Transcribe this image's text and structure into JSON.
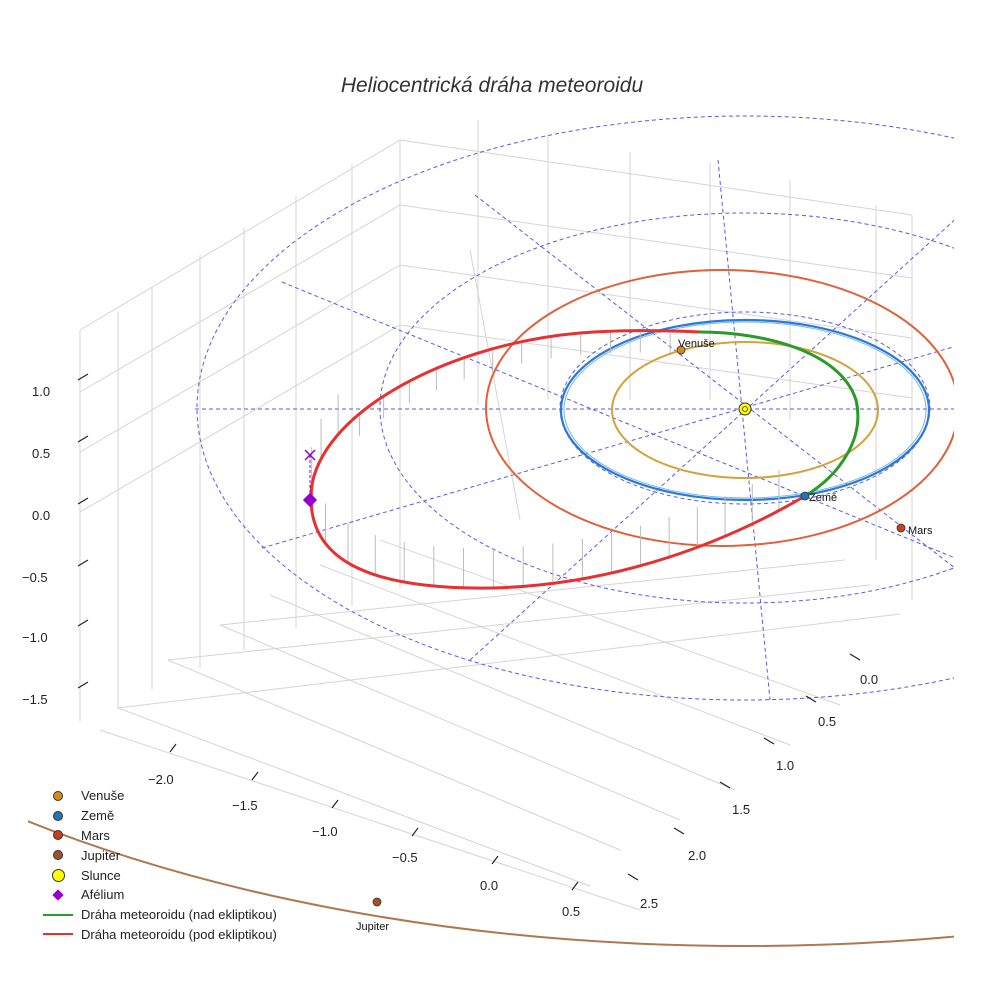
{
  "chart_data": {
    "type": "line",
    "title": "Heliocentrická dráha meteoroidu",
    "projection": "3d",
    "xlabel": "",
    "ylabel": "",
    "zlabel": "",
    "x_ticks": [
      "−2.0",
      "−1.5",
      "−1.0",
      "−0.5",
      "0.0",
      "0.5"
    ],
    "y_ticks": [
      "0.0",
      "0.5",
      "1.0",
      "1.5",
      "2.0",
      "2.5"
    ],
    "z_ticks": [
      "1.0",
      "0.5",
      "0.0",
      "−0.5",
      "−1.0",
      "−1.5"
    ],
    "planets": [
      {
        "name": "Venuše",
        "orbit_radius_au": 0.72,
        "color": "#d4a23a",
        "marker_color": "#d48a1a"
      },
      {
        "name": "Země",
        "orbit_radius_au": 1.0,
        "color": "#2e78d6",
        "marker_color": "#1f77b4"
      },
      {
        "name": "Mars",
        "orbit_radius_au": 1.52,
        "color": "#e0603a",
        "marker_color": "#c8401a"
      },
      {
        "name": "Jupiter",
        "orbit_radius_au": 5.2,
        "color": "#b07850",
        "marker_color": "#a0522d"
      }
    ],
    "sun": {
      "name": "Slunce",
      "color": "#ffff00"
    },
    "aphelion": {
      "name": "Afélium",
      "color": "#9400d3"
    },
    "series": [
      {
        "name": "Dráha meteoroidu (nad ekliptikou)",
        "color": "#2a9a2a"
      },
      {
        "name": "Dráha meteoroidu (pod ekliptikou)",
        "color": "#e83030"
      }
    ]
  },
  "legend": [
    {
      "label": "Venuše",
      "kind": "dot",
      "color": "#d48a1a"
    },
    {
      "label": "Země",
      "kind": "dot",
      "color": "#1f77b4"
    },
    {
      "label": "Mars",
      "kind": "dot",
      "color": "#c8401a"
    },
    {
      "label": "Jupiter",
      "kind": "dot",
      "color": "#a0522d"
    },
    {
      "label": "Slunce",
      "kind": "bigdot",
      "color": "#ffff00"
    },
    {
      "label": "Afélium",
      "kind": "diamond",
      "color": "#9400d3"
    },
    {
      "label": "Dráha meteoroidu (nad ekliptikou)",
      "kind": "line",
      "color": "#2a9a2a"
    },
    {
      "label": "Dráha meteoroidu (pod ekliptikou)",
      "kind": "line",
      "color": "#e83030"
    }
  ]
}
